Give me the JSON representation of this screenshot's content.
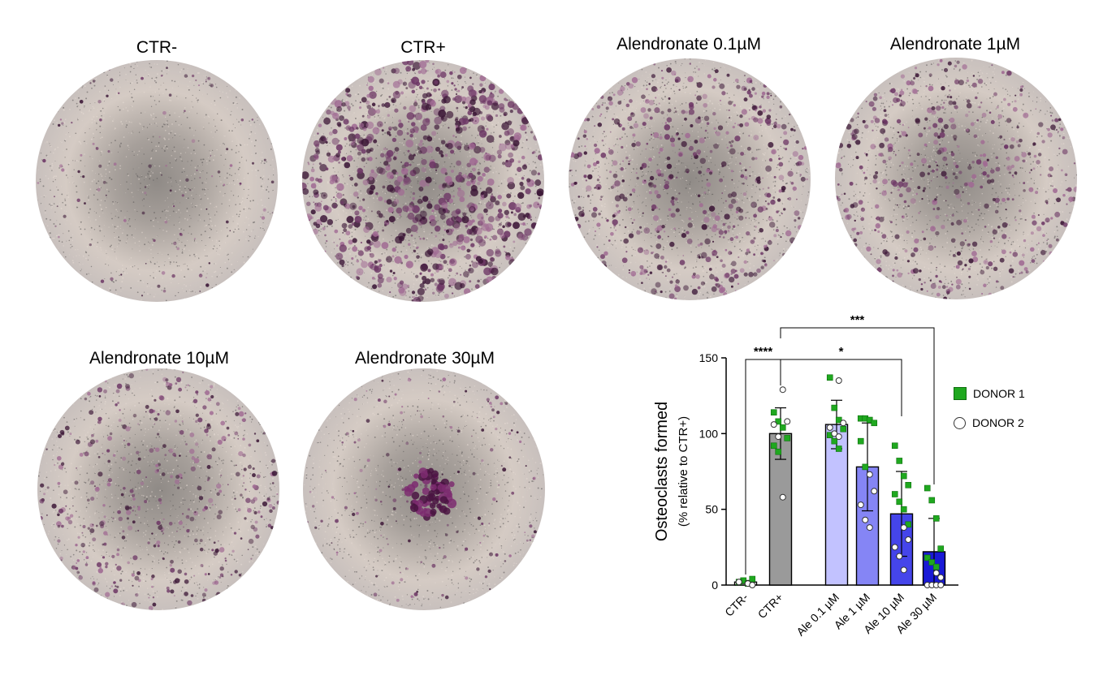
{
  "wells": [
    {
      "label": "CTR-",
      "density": 0.05,
      "center_cluster": false
    },
    {
      "label": "CTR+",
      "density": 1.0,
      "center_cluster": false
    },
    {
      "label": "Alendronate 0.1µM",
      "density": 0.6,
      "center_cluster": false
    },
    {
      "label": "Alendronate 1µM",
      "density": 0.5,
      "center_cluster": false
    },
    {
      "label": "Alendronate 10µM",
      "density": 0.4,
      "center_cluster": false
    },
    {
      "label": "Alendronate 30µM",
      "density": 0.1,
      "center_cluster": true
    }
  ],
  "legend": {
    "donor1": "DONOR 1",
    "donor2": "DONOR 2"
  },
  "chart_data": {
    "type": "bar",
    "ylabel": "Osteoclasts formed",
    "ylabel_sub": "(% relative to CTR+)",
    "ylim": [
      0,
      150
    ],
    "yticks": [
      0,
      50,
      100,
      150
    ],
    "categories": [
      "CTR-",
      "CTR+",
      "Ale 0.1 µM",
      "Ale 1 µM",
      "Ale 10 µM",
      "Ale 30 µM"
    ],
    "values": [
      2,
      100,
      106,
      78,
      47,
      22
    ],
    "errors": [
      1,
      17,
      16,
      29,
      28,
      22
    ],
    "colors": [
      "#ffffff",
      "#9a9a9a",
      "#c2c2ff",
      "#8585f5",
      "#4545ea",
      "#1a1ad6"
    ],
    "points": {
      "donor1": [
        [
          2,
          3,
          1,
          4,
          2
        ],
        [
          114,
          108,
          104,
          97,
          92,
          88
        ],
        [
          137,
          117,
          109,
          103,
          99,
          95,
          90
        ],
        [
          110,
          110,
          109,
          107,
          95,
          78
        ],
        [
          92,
          82,
          72,
          66,
          60,
          55,
          50,
          40
        ],
        [
          64,
          56,
          44,
          24,
          18,
          15,
          12
        ]
      ],
      "donor2": [
        [
          1,
          0,
          2
        ],
        [
          129,
          108,
          106,
          98,
          58
        ],
        [
          135,
          107,
          104,
          100,
          98
        ],
        [
          73,
          62,
          53,
          43,
          38
        ],
        [
          38,
          30,
          25,
          19,
          10
        ],
        [
          8,
          5,
          0,
          0,
          0,
          0
        ]
      ]
    },
    "significance": [
      {
        "from": 1,
        "to": 5,
        "label": "***"
      },
      {
        "from": 0,
        "to": 1,
        "label": "****"
      },
      {
        "from": 1,
        "to": 4,
        "label": "*"
      }
    ],
    "legend": [
      "DONOR 1",
      "DONOR 2"
    ],
    "legend_position": "right"
  }
}
